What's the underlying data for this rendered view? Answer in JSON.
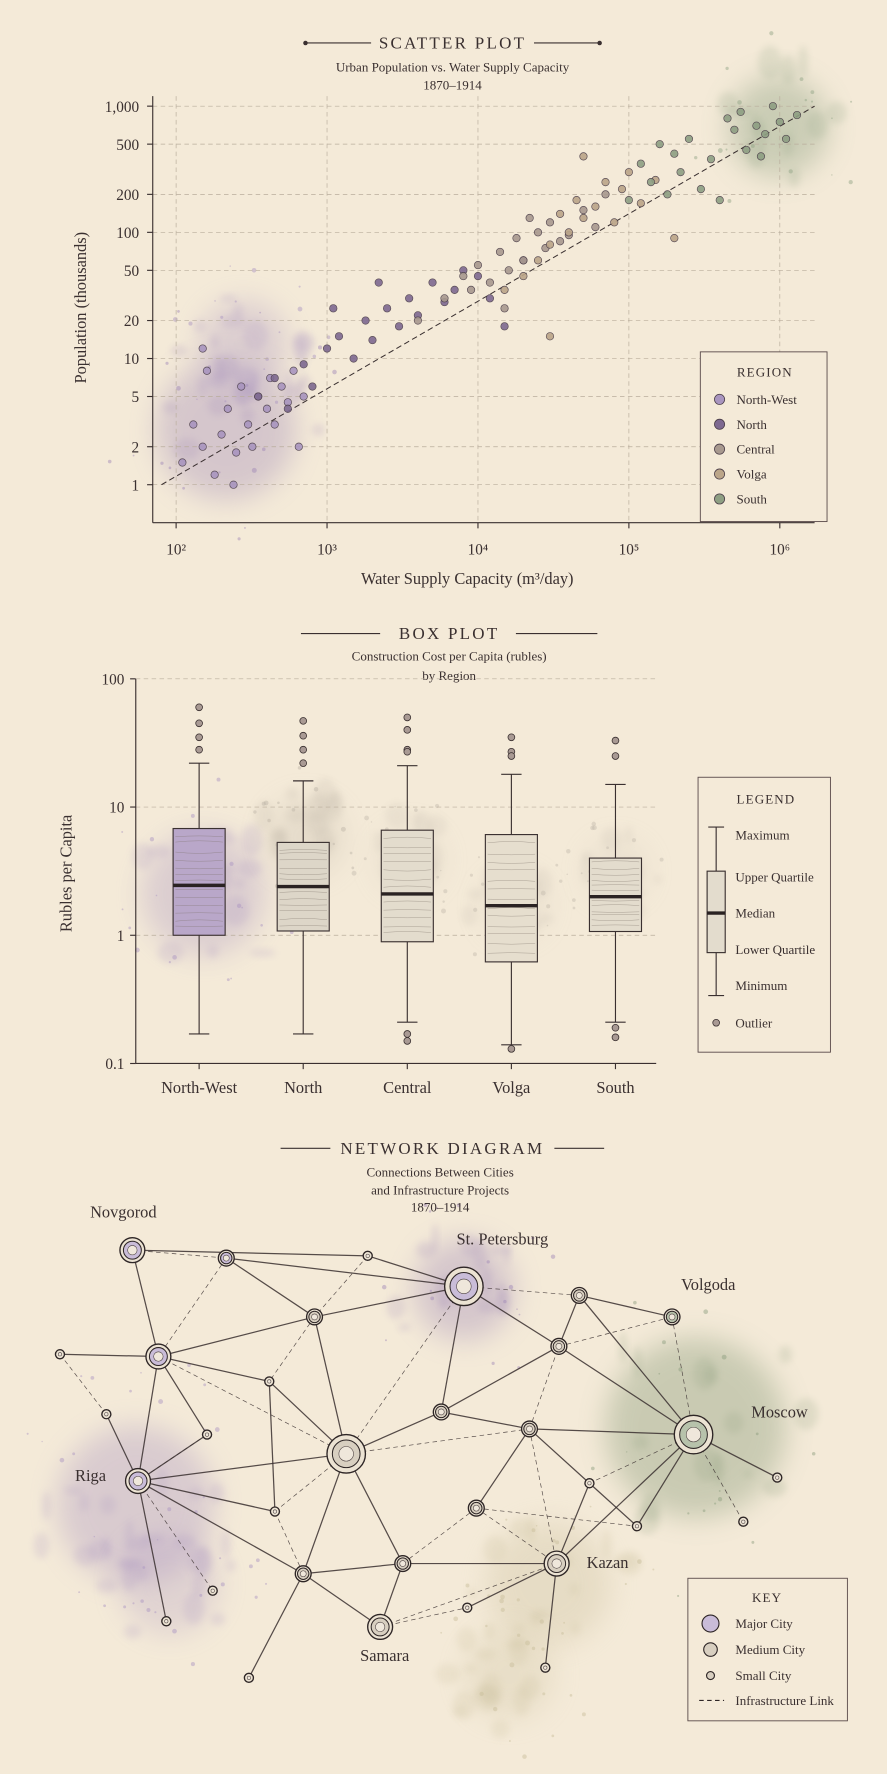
{
  "chart_data": [
    {
      "type": "scatter",
      "title": "SCATTER PLOT",
      "subtitle": [
        "Urban Population vs. Water Supply Capacity",
        "1870–1914"
      ],
      "x_label": "Water Supply Capacity (m³/day)",
      "y_label": "Population (thousands)",
      "log_x": true,
      "log_y": true,
      "grid": true,
      "xlim": [
        70,
        1700000
      ],
      "xticks": [
        {
          "value": 100,
          "label": "10²"
        },
        {
          "value": 1000,
          "label": "10³"
        },
        {
          "value": 10000,
          "label": "10⁴"
        },
        {
          "value": 100000,
          "label": "10⁵"
        },
        {
          "value": 1000000,
          "label": "10⁶"
        }
      ],
      "ylim": [
        0.5,
        1200
      ],
      "yticks": [
        1,
        2,
        5,
        10,
        20,
        50,
        100,
        200,
        500,
        {
          "value": 1000,
          "label": "1,000"
        }
      ],
      "legend": "lower right",
      "legend_title": "REGION",
      "trend_line": {
        "x": [
          80,
          1700000
        ],
        "y": [
          1,
          1000
        ]
      },
      "series": [
        {
          "name": "North-West",
          "color": "#a995bf",
          "x": [
            110,
            130,
            150,
            160,
            180,
            200,
            220,
            250,
            270,
            300,
            320,
            350,
            400,
            420,
            450,
            500,
            550,
            600,
            650,
            700,
            150,
            240
          ],
          "values": [
            1.5,
            3,
            2,
            8,
            1.2,
            2.5,
            4,
            1.8,
            6,
            3,
            2,
            5,
            4,
            7,
            3,
            6,
            4.5,
            8,
            2,
            5,
            12,
            1
          ]
        },
        {
          "name": "North",
          "color": "#7e6990",
          "x": [
            350,
            450,
            550,
            700,
            800,
            1000,
            1200,
            1500,
            1800,
            2000,
            2500,
            3000,
            3500,
            4000,
            5000,
            6000,
            7000,
            8000,
            10000,
            12000,
            15000,
            20000,
            1100,
            2200
          ],
          "values": [
            5,
            7,
            4,
            9,
            6,
            12,
            15,
            10,
            20,
            14,
            25,
            18,
            30,
            22,
            40,
            28,
            35,
            50,
            45,
            30,
            18,
            60,
            25,
            40
          ]
        },
        {
          "name": "Central",
          "color": "#a8998f",
          "x": [
            4000,
            6000,
            8000,
            9000,
            10000,
            12000,
            14000,
            16000,
            18000,
            20000,
            25000,
            28000,
            30000,
            35000,
            40000,
            50000,
            60000,
            70000,
            15000,
            22000
          ],
          "values": [
            20,
            30,
            45,
            35,
            55,
            40,
            70,
            50,
            90,
            60,
            100,
            75,
            120,
            85,
            95,
            150,
            110,
            200,
            25,
            130
          ]
        },
        {
          "name": "Volga",
          "color": "#bba589",
          "x": [
            15000,
            20000,
            25000,
            30000,
            35000,
            40000,
            45000,
            50000,
            60000,
            70000,
            80000,
            90000,
            100000,
            120000,
            150000,
            200000,
            50000,
            30000
          ],
          "values": [
            35,
            45,
            60,
            80,
            140,
            100,
            180,
            130,
            160,
            250,
            120,
            220,
            300,
            170,
            260,
            90,
            400,
            15
          ]
        },
        {
          "name": "South",
          "color": "#8e9f83",
          "x": [
            100000,
            120000,
            140000,
            160000,
            180000,
            200000,
            220000,
            250000,
            300000,
            350000,
            400000,
            500000,
            550000,
            600000,
            700000,
            800000,
            900000,
            1000000,
            1100000,
            1300000,
            750000,
            450000
          ],
          "values": [
            180,
            350,
            250,
            500,
            200,
            420,
            300,
            550,
            220,
            380,
            180,
            650,
            900,
            450,
            700,
            600,
            1000,
            750,
            550,
            850,
            400,
            800
          ]
        }
      ]
    },
    {
      "type": "box",
      "title": "BOX PLOT",
      "subtitle": [
        "Construction Cost per Capita (rubles)",
        "by Region"
      ],
      "y_label": "Rubles per Capita",
      "log_y": true,
      "grid": true,
      "ylim": [
        0.1,
        100
      ],
      "yticks": [
        0.1,
        1,
        10,
        100
      ],
      "categories": [
        "North-West",
        "North",
        "Central",
        "Volga",
        "South"
      ],
      "boxes": [
        {
          "min": 0.17,
          "q1": 1.0,
          "median": 2.45,
          "q3": 6.8,
          "max": 22,
          "outliers": [
            60,
            45,
            35,
            28
          ],
          "color": "#b9a7c9"
        },
        {
          "min": 0.17,
          "q1": 1.08,
          "median": 2.4,
          "q3": 5.3,
          "max": 16,
          "outliers": [
            47,
            36,
            28,
            22
          ],
          "color": "#ddd6c8"
        },
        {
          "min": 0.21,
          "q1": 0.89,
          "median": 2.1,
          "q3": 6.6,
          "max": 21,
          "outliers": [
            50,
            40,
            28,
            27,
            0.17,
            0.15
          ],
          "color": "#e3dccd"
        },
        {
          "min": 0.14,
          "q1": 0.62,
          "median": 1.7,
          "q3": 6.1,
          "max": 18,
          "outliers": [
            35,
            27,
            25,
            0.13
          ],
          "color": "#e6dece"
        },
        {
          "min": 0.21,
          "q1": 1.07,
          "median": 2.0,
          "q3": 4.0,
          "max": 15,
          "outliers": [
            33,
            25,
            0.19,
            0.16
          ],
          "color": "#e3dccd"
        }
      ],
      "legend_title": "LEGEND",
      "legend_labels": [
        "Maximum",
        "Upper Quartile",
        "Median",
        "Lower Quartile",
        "Minimum",
        "Outlier"
      ]
    }
  ],
  "diagram": {
    "title": "NETWORK DIAGRAM",
    "subtitle": [
      "Connections Between Cities",
      "and Infrastructure Projects",
      "1870–1914"
    ],
    "cities": [
      "Novgorod",
      "St. Petersburg",
      "Volgoda",
      "Moscow",
      "Riga",
      "Kazan",
      "Samara"
    ],
    "key": {
      "title": "KEY",
      "items": [
        "Major City",
        "Medium City",
        "Small City",
        "Infrastructure Link"
      ]
    }
  }
}
